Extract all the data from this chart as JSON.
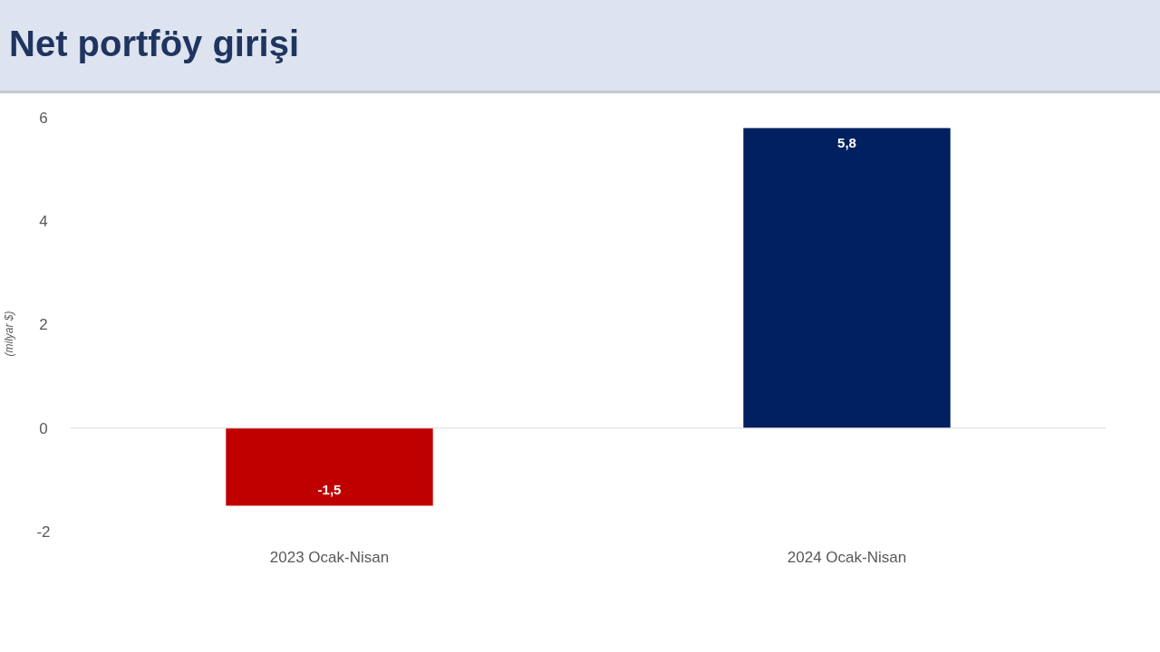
{
  "chart_data": {
    "type": "bar",
    "title": "Net portföy girişi",
    "ylabel": "(milyar $)",
    "categories": [
      "2023 Ocak-Nisan",
      "2024 Ocak-Nisan"
    ],
    "values": [
      -1.5,
      5.8
    ],
    "colors": [
      "#c00000",
      "#002060"
    ],
    "value_labels": [
      "-1,5",
      "5,8"
    ],
    "ylim": [
      -2,
      6
    ],
    "yticks": [
      -2,
      0,
      2,
      4,
      6
    ]
  }
}
